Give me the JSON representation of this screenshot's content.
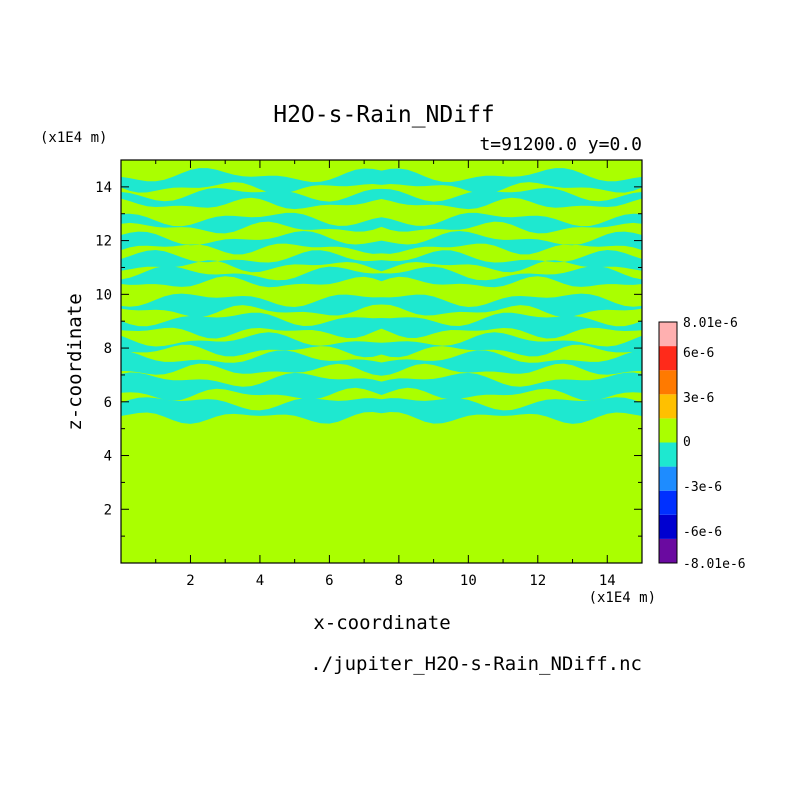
{
  "chart_data": {
    "type": "heatmap",
    "title": "H2O-s-Rain_NDiff",
    "subtitle": "t=91200.0 y=0.0",
    "xlabel": "x-coordinate",
    "ylabel": "z-coordinate",
    "x_unit": "(x1E4 m)",
    "y_unit": "(x1E4 m)",
    "xlim": [
      0,
      15
    ],
    "ylim": [
      0,
      15
    ],
    "x_ticks": [
      "2",
      "4",
      "6",
      "8",
      "10",
      "12",
      "14"
    ],
    "y_ticks": [
      "2",
      "4",
      "6",
      "8",
      "10",
      "12",
      "14"
    ],
    "source": "./jupiter_H2O-s-Rain_NDiff.nc",
    "grid": false,
    "colorbar": {
      "labels": [
        "8.01e-6",
        "6e-6",
        "3e-6",
        "0",
        "-3e-6",
        "-6e-6",
        "-8.01e-6"
      ],
      "colors": [
        "#6a0aa0",
        "#0000d0",
        "#0030ff",
        "#1e8cff",
        "#1ee8d0",
        "#aaff00",
        "#ffc000",
        "#ff7a00",
        "#ff2a1a",
        "#ffb0b0"
      ]
    },
    "fields": {
      "background_value": 0,
      "background_color": "#aaff00",
      "negative_color": "#1ee8d0",
      "negative_bands_z": [
        {
          "z": 14.2,
          "h": 0.45
        },
        {
          "z": 13.55,
          "h": 0.4
        },
        {
          "z": 12.65,
          "h": 0.35
        },
        {
          "z": 11.9,
          "h": 0.35
        },
        {
          "z": 11.2,
          "h": 0.3
        },
        {
          "z": 10.6,
          "h": 0.35
        },
        {
          "z": 9.6,
          "h": 0.45
        },
        {
          "z": 8.85,
          "h": 0.5
        },
        {
          "z": 8.1,
          "h": 0.4
        },
        {
          "z": 7.4,
          "h": 0.45
        },
        {
          "z": 6.55,
          "h": 0.55
        },
        {
          "z": 5.7,
          "h": 0.55
        }
      ]
    }
  }
}
